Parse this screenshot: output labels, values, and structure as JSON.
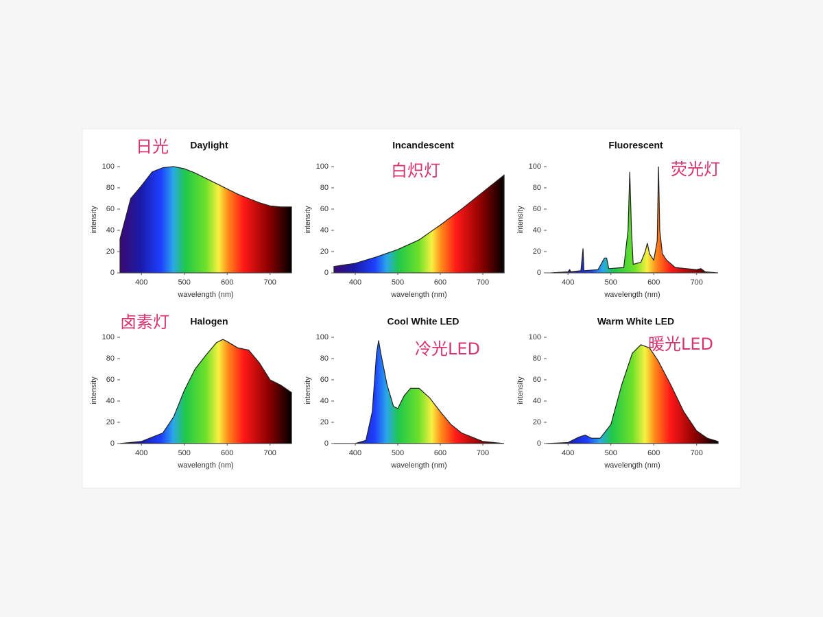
{
  "chart_data": [
    {
      "type": "area",
      "title": "Daylight",
      "annotation": "日光",
      "xlabel": "wavelength (nm)",
      "ylabel": "intensity",
      "x": [
        350,
        375,
        400,
        425,
        450,
        475,
        500,
        525,
        550,
        575,
        600,
        625,
        650,
        675,
        700,
        725,
        750
      ],
      "values": [
        32,
        70,
        82,
        95,
        99,
        100,
        98,
        94,
        89,
        84,
        79,
        74,
        70,
        66,
        63,
        62,
        62
      ],
      "xlim": [
        350,
        750
      ],
      "ylim": [
        0,
        100
      ],
      "xticks": [
        400,
        500,
        600,
        700
      ],
      "yticks": [
        0,
        20,
        40,
        60,
        80,
        100
      ]
    },
    {
      "type": "area",
      "title": "Incandescent",
      "annotation": "白炽灯",
      "xlabel": "wavelength (nm)",
      "ylabel": "intensity",
      "x": [
        350,
        400,
        450,
        500,
        550,
        600,
        650,
        700,
        750
      ],
      "values": [
        6,
        9,
        15,
        22,
        31,
        45,
        60,
        76,
        92
      ],
      "xlim": [
        350,
        750
      ],
      "ylim": [
        0,
        100
      ],
      "xticks": [
        400,
        500,
        600,
        700
      ],
      "yticks": [
        0,
        20,
        40,
        60,
        80,
        100
      ]
    },
    {
      "type": "area",
      "title": "Fluorescent",
      "annotation": "荧光灯",
      "xlabel": "wavelength (nm)",
      "ylabel": "intensity",
      "x": [
        360,
        400,
        404,
        406,
        430,
        435,
        437,
        470,
        485,
        490,
        495,
        530,
        540,
        544,
        548,
        552,
        570,
        580,
        585,
        590,
        600,
        608,
        611,
        614,
        620,
        630,
        650,
        700,
        710,
        720,
        750
      ],
      "values": [
        0,
        1,
        3,
        1,
        2,
        23,
        2,
        3,
        14,
        14,
        4,
        5,
        40,
        95,
        40,
        8,
        10,
        20,
        28,
        18,
        12,
        30,
        100,
        40,
        18,
        12,
        5,
        3,
        4,
        1,
        0
      ],
      "xlim": [
        350,
        750
      ],
      "ylim": [
        0,
        100
      ],
      "xticks": [
        400,
        500,
        600,
        700
      ],
      "yticks": [
        0,
        20,
        40,
        60,
        80,
        100
      ]
    },
    {
      "type": "area",
      "title": "Halogen",
      "annotation": "卤素灯",
      "xlabel": "wavelength (nm)",
      "ylabel": "intensity",
      "x": [
        350,
        400,
        450,
        475,
        500,
        525,
        550,
        575,
        590,
        600,
        625,
        650,
        675,
        700,
        725,
        750
      ],
      "values": [
        0,
        2,
        10,
        25,
        50,
        70,
        83,
        95,
        98,
        96,
        90,
        88,
        76,
        60,
        55,
        48
      ],
      "xlim": [
        350,
        750
      ],
      "ylim": [
        0,
        100
      ],
      "xticks": [
        400,
        500,
        600,
        700
      ],
      "yticks": [
        0,
        20,
        40,
        60,
        80,
        100
      ]
    },
    {
      "type": "area",
      "title": "Cool White LED",
      "annotation": "冷光LED",
      "xlabel": "wavelength (nm)",
      "ylabel": "intensity",
      "x": [
        350,
        400,
        425,
        440,
        450,
        455,
        460,
        475,
        490,
        500,
        515,
        530,
        550,
        575,
        600,
        625,
        650,
        700,
        750
      ],
      "values": [
        0,
        0,
        3,
        30,
        85,
        97,
        85,
        55,
        35,
        33,
        45,
        52,
        52,
        43,
        30,
        18,
        10,
        2,
        0
      ],
      "xlim": [
        350,
        750
      ],
      "ylim": [
        0,
        100
      ],
      "xticks": [
        400,
        500,
        600,
        700
      ],
      "yticks": [
        0,
        20,
        40,
        60,
        80,
        100
      ]
    },
    {
      "type": "area",
      "title": "Warm White LED",
      "annotation": "暖光LED",
      "xlabel": "wavelength (nm)",
      "ylabel": "intensity",
      "x": [
        350,
        400,
        425,
        440,
        455,
        475,
        500,
        525,
        550,
        570,
        590,
        610,
        640,
        670,
        700,
        725,
        750
      ],
      "values": [
        0,
        1,
        6,
        8,
        5,
        5,
        18,
        55,
        85,
        93,
        90,
        78,
        55,
        30,
        12,
        5,
        2
      ],
      "xlim": [
        350,
        750
      ],
      "ylim": [
        0,
        100
      ],
      "xticks": [
        400,
        500,
        600,
        700
      ],
      "yticks": [
        0,
        20,
        40,
        60,
        80,
        100
      ]
    }
  ]
}
